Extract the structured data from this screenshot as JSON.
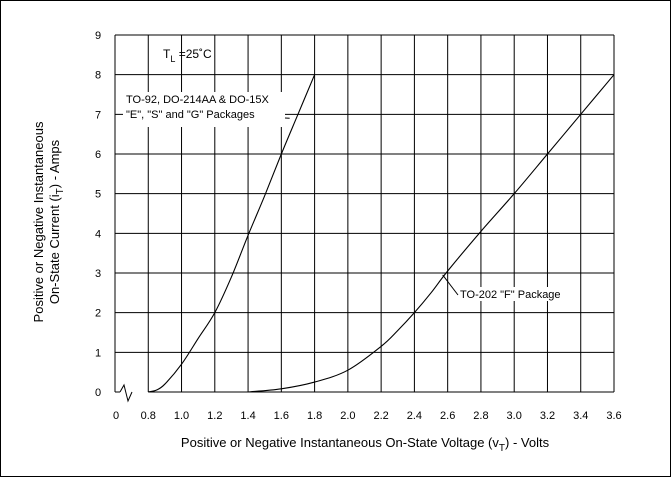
{
  "chart_data": {
    "type": "line",
    "title": "",
    "annotation_temp": {
      "prefix": "T",
      "sub": "L",
      "suffix": " =25˚C"
    },
    "xlabel": {
      "main": "Positive or Negative Instantaneous On-State Voltage (v",
      "sub": "T",
      "tail": ") - Volts"
    },
    "ylabel": {
      "line1": "Positive or Negative Instantaneous",
      "line2_main": "On-State Current (i",
      "line2_sub": "T",
      "line2_tail": ") - Amps"
    },
    "x_origin_label": "0",
    "xlim": [
      0.8,
      3.6
    ],
    "ylim": [
      0,
      9
    ],
    "x_ticks": [
      {
        "value": 0.8,
        "label": "0.8"
      },
      {
        "value": 1.0,
        "label": "1.0"
      },
      {
        "value": 1.2,
        "label": "1.2"
      },
      {
        "value": 1.4,
        "label": "1.4"
      },
      {
        "value": 1.6,
        "label": "1.6"
      },
      {
        "value": 1.8,
        "label": "1.8"
      },
      {
        "value": 2.0,
        "label": "2.0"
      },
      {
        "value": 2.2,
        "label": "2.2"
      },
      {
        "value": 2.4,
        "label": "2.4"
      },
      {
        "value": 2.6,
        "label": "2.6"
      },
      {
        "value": 2.8,
        "label": "2.8"
      },
      {
        "value": 3.0,
        "label": "3.0"
      },
      {
        "value": 3.2,
        "label": "3.2"
      },
      {
        "value": 3.4,
        "label": "3.4"
      },
      {
        "value": 3.6,
        "label": "3.6"
      }
    ],
    "y_ticks": [
      {
        "value": 0,
        "label": "0"
      },
      {
        "value": 1,
        "label": "1"
      },
      {
        "value": 2,
        "label": "2"
      },
      {
        "value": 3,
        "label": "3"
      },
      {
        "value": 4,
        "label": "4"
      },
      {
        "value": 5,
        "label": "5"
      },
      {
        "value": 6,
        "label": "6"
      },
      {
        "value": 7,
        "label": "7"
      },
      {
        "value": 8,
        "label": "8"
      },
      {
        "value": 9,
        "label": "9"
      }
    ],
    "grid": true,
    "series": [
      {
        "labels": [
          "TO-92, DO-214AA & DO-15X",
          "\"E\", \"S\" and \"G\" Packages"
        ],
        "callout_at": {
          "x": 1.65,
          "y": 6.9
        },
        "points": [
          [
            0.8,
            0
          ],
          [
            0.85,
            0.05
          ],
          [
            0.9,
            0.2
          ],
          [
            1.0,
            0.7
          ],
          [
            1.1,
            1.35
          ],
          [
            1.2,
            2.0
          ],
          [
            1.3,
            2.9
          ],
          [
            1.4,
            3.95
          ],
          [
            1.5,
            4.95
          ],
          [
            1.6,
            6.0
          ],
          [
            1.7,
            7.0
          ],
          [
            1.8,
            8.0
          ]
        ]
      },
      {
        "labels": [
          "TO-202 \"F\" Package"
        ],
        "callout_at": {
          "x": 2.57,
          "y": 2.95
        },
        "points": [
          [
            1.4,
            0
          ],
          [
            1.6,
            0.08
          ],
          [
            1.8,
            0.25
          ],
          [
            2.0,
            0.55
          ],
          [
            2.2,
            1.15
          ],
          [
            2.3,
            1.55
          ],
          [
            2.4,
            2.0
          ],
          [
            2.5,
            2.5
          ],
          [
            2.6,
            3.05
          ],
          [
            2.8,
            4.05
          ],
          [
            3.0,
            5.0
          ],
          [
            3.2,
            6.0
          ],
          [
            3.4,
            7.0
          ],
          [
            3.6,
            8.0
          ]
        ]
      }
    ]
  }
}
